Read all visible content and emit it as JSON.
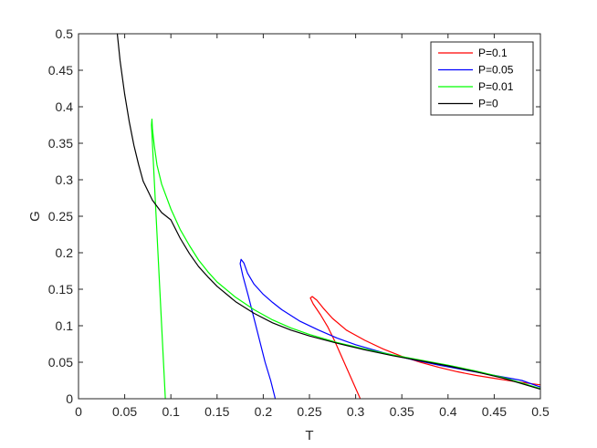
{
  "chart_data": {
    "type": "line",
    "title": "",
    "xlabel": "T",
    "ylabel": "G",
    "xlim": [
      0,
      0.5
    ],
    "ylim": [
      0,
      0.5
    ],
    "xticks": [
      "0",
      "0.05",
      "0.1",
      "0.15",
      "0.2",
      "0.25",
      "0.3",
      "0.35",
      "0.4",
      "0.45",
      "0.5"
    ],
    "yticks": [
      "0",
      "0.05",
      "0.1",
      "0.15",
      "0.2",
      "0.25",
      "0.3",
      "0.35",
      "0.4",
      "0.45",
      "0.5"
    ],
    "grid": false,
    "legend_position": "top-right",
    "series": [
      {
        "name": "P=0.1",
        "color": "#ff0000",
        "points": [
          [
            0.305,
            0.0
          ],
          [
            0.298,
            0.02
          ],
          [
            0.291,
            0.04
          ],
          [
            0.284,
            0.06
          ],
          [
            0.277,
            0.08
          ],
          [
            0.27,
            0.098
          ],
          [
            0.262,
            0.115
          ],
          [
            0.254,
            0.13
          ],
          [
            0.251,
            0.138
          ],
          [
            0.253,
            0.14
          ],
          [
            0.258,
            0.135
          ],
          [
            0.265,
            0.124
          ],
          [
            0.275,
            0.11
          ],
          [
            0.29,
            0.094
          ],
          [
            0.31,
            0.08
          ],
          [
            0.33,
            0.068
          ],
          [
            0.35,
            0.058
          ],
          [
            0.37,
            0.05
          ],
          [
            0.39,
            0.043
          ],
          [
            0.41,
            0.037
          ],
          [
            0.43,
            0.032
          ],
          [
            0.45,
            0.028
          ],
          [
            0.47,
            0.024
          ],
          [
            0.5,
            0.019
          ]
        ]
      },
      {
        "name": "P=0.05",
        "color": "#0000ff",
        "points": [
          [
            0.213,
            0.0
          ],
          [
            0.208,
            0.025
          ],
          [
            0.202,
            0.05
          ],
          [
            0.196,
            0.08
          ],
          [
            0.19,
            0.11
          ],
          [
            0.184,
            0.14
          ],
          [
            0.178,
            0.168
          ],
          [
            0.175,
            0.185
          ],
          [
            0.176,
            0.191
          ],
          [
            0.179,
            0.186
          ],
          [
            0.183,
            0.172
          ],
          [
            0.19,
            0.157
          ],
          [
            0.2,
            0.143
          ],
          [
            0.21,
            0.132
          ],
          [
            0.22,
            0.122
          ],
          [
            0.24,
            0.106
          ],
          [
            0.26,
            0.094
          ],
          [
            0.28,
            0.083
          ],
          [
            0.3,
            0.074
          ],
          [
            0.33,
            0.063
          ],
          [
            0.36,
            0.054
          ],
          [
            0.39,
            0.046
          ],
          [
            0.42,
            0.039
          ],
          [
            0.45,
            0.032
          ],
          [
            0.48,
            0.025
          ],
          [
            0.5,
            0.016
          ]
        ]
      },
      {
        "name": "P=0.01",
        "color": "#00ff00",
        "points": [
          [
            0.094,
            0.0
          ],
          [
            0.092,
            0.05
          ],
          [
            0.09,
            0.1
          ],
          [
            0.088,
            0.15
          ],
          [
            0.086,
            0.2
          ],
          [
            0.084,
            0.25
          ],
          [
            0.082,
            0.3
          ],
          [
            0.08,
            0.35
          ],
          [
            0.079,
            0.375
          ],
          [
            0.0795,
            0.383
          ],
          [
            0.08,
            0.37
          ],
          [
            0.082,
            0.347
          ],
          [
            0.085,
            0.32
          ],
          [
            0.09,
            0.294
          ],
          [
            0.1,
            0.26
          ],
          [
            0.11,
            0.232
          ],
          [
            0.12,
            0.21
          ],
          [
            0.13,
            0.19
          ],
          [
            0.14,
            0.174
          ],
          [
            0.15,
            0.16
          ],
          [
            0.17,
            0.139
          ],
          [
            0.19,
            0.122
          ],
          [
            0.21,
            0.108
          ],
          [
            0.23,
            0.097
          ],
          [
            0.25,
            0.088
          ],
          [
            0.28,
            0.077
          ],
          [
            0.31,
            0.068
          ],
          [
            0.34,
            0.06
          ],
          [
            0.37,
            0.053
          ],
          [
            0.4,
            0.046
          ],
          [
            0.43,
            0.038
          ],
          [
            0.46,
            0.029
          ],
          [
            0.5,
            0.014
          ]
        ]
      },
      {
        "name": "P=0",
        "color": "#000000",
        "points": [
          [
            0.042,
            0.5
          ],
          [
            0.045,
            0.463
          ],
          [
            0.05,
            0.417
          ],
          [
            0.055,
            0.379
          ],
          [
            0.06,
            0.347
          ],
          [
            0.065,
            0.321
          ],
          [
            0.07,
            0.298
          ],
          [
            0.08,
            0.272
          ],
          [
            0.09,
            0.255
          ],
          [
            0.1,
            0.245
          ],
          [
            0.11,
            0.22
          ],
          [
            0.12,
            0.199
          ],
          [
            0.13,
            0.181
          ],
          [
            0.14,
            0.167
          ],
          [
            0.15,
            0.154
          ],
          [
            0.17,
            0.133
          ],
          [
            0.19,
            0.117
          ],
          [
            0.21,
            0.104
          ],
          [
            0.23,
            0.094
          ],
          [
            0.25,
            0.086
          ],
          [
            0.28,
            0.076
          ],
          [
            0.31,
            0.067
          ],
          [
            0.34,
            0.059
          ],
          [
            0.37,
            0.052
          ],
          [
            0.4,
            0.045
          ],
          [
            0.43,
            0.037
          ],
          [
            0.46,
            0.028
          ],
          [
            0.5,
            0.013
          ]
        ]
      }
    ]
  }
}
